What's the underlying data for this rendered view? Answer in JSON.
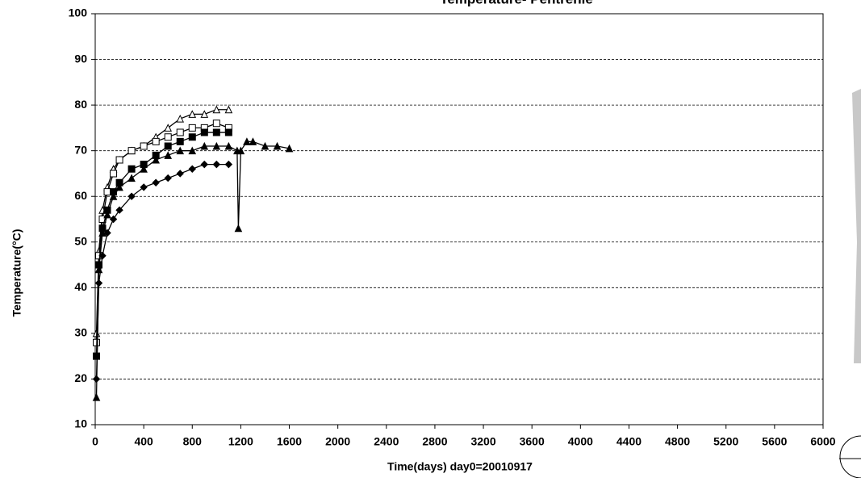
{
  "chart_data": {
    "type": "line",
    "title": "Temperature- Pentrenie",
    "x_label": "Time(days)  day0=20010917",
    "y_label": "Temperature(°C)",
    "xlim": [
      0,
      6000
    ],
    "xticks": [
      0,
      400,
      800,
      1200,
      1600,
      2000,
      2400,
      2800,
      3200,
      3600,
      4000,
      4400,
      4800,
      5200,
      5600,
      6000
    ],
    "ylim": [
      10,
      100
    ],
    "yticks": [
      10,
      20,
      30,
      40,
      50,
      60,
      70,
      80,
      90,
      100
    ],
    "grid": true,
    "series": [
      {
        "color": "#000000",
        "marker": "triangle-open",
        "x": [
          10,
          30,
          60,
          100,
          150,
          200,
          300,
          400,
          500,
          600,
          700,
          800,
          900,
          1000,
          1100
        ],
        "values": [
          30,
          48,
          57,
          62,
          66,
          68,
          70,
          71,
          73,
          75,
          77,
          78,
          78,
          79,
          79
        ]
      },
      {
        "color": "#000000",
        "marker": "square-open",
        "x": [
          10,
          30,
          60,
          100,
          150,
          200,
          300,
          400,
          500,
          600,
          700,
          800,
          900,
          1000,
          1100
        ],
        "values": [
          28,
          47,
          55,
          61,
          65,
          68,
          70,
          71,
          72,
          73,
          74,
          75,
          75,
          76,
          75
        ]
      },
      {
        "color": "#000000",
        "marker": "square",
        "x": [
          10,
          30,
          60,
          100,
          150,
          200,
          300,
          400,
          500,
          600,
          700,
          800,
          900,
          1000,
          1100
        ],
        "values": [
          25,
          45,
          53,
          57,
          61,
          63,
          66,
          67,
          69,
          71,
          72,
          73,
          74,
          74,
          74
        ]
      },
      {
        "color": "#000000",
        "marker": "triangle",
        "x": [
          10,
          30,
          60,
          100,
          150,
          200,
          300,
          400,
          500,
          600,
          700,
          800,
          900,
          1000,
          1100,
          1170,
          1180,
          1200,
          1250,
          1300,
          1400,
          1500,
          1600
        ],
        "values": [
          16,
          44,
          52,
          56,
          60,
          62,
          64,
          66,
          68,
          69,
          70,
          70,
          71,
          71,
          71,
          70,
          53,
          70,
          72,
          72,
          71,
          71,
          70.5
        ]
      },
      {
        "color": "#000000",
        "marker": "diamond",
        "x": [
          10,
          30,
          60,
          100,
          150,
          200,
          300,
          400,
          500,
          600,
          700,
          800,
          900,
          1000,
          1100
        ],
        "values": [
          20,
          41,
          47,
          52,
          55,
          57,
          60,
          62,
          63,
          64,
          65,
          66,
          67,
          67,
          67
        ]
      }
    ]
  }
}
